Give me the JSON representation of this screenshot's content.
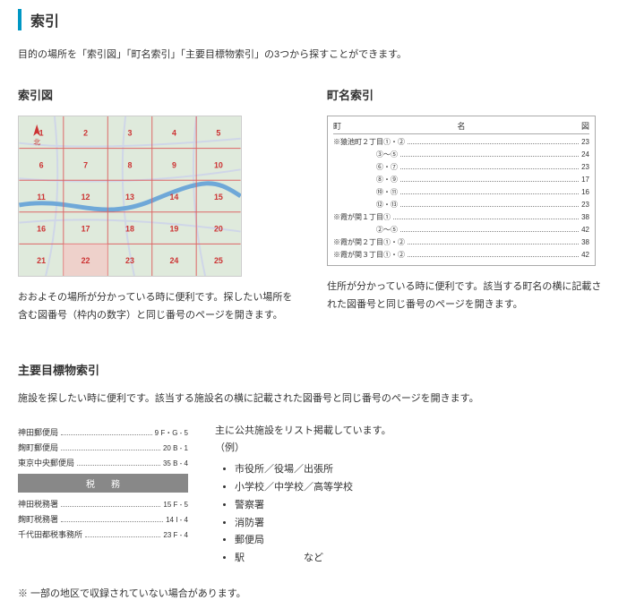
{
  "title": "索引",
  "intro": "目的の場所を「索引図」「町名索引」「主要目標物索引」の3つから探すことができます。",
  "section1": {
    "heading": "索引図",
    "caption": "おおよその場所が分かっている時に便利です。探したい場所を含む図番号（枠内の数字）と同じ番号のページを開きます。",
    "map": {
      "bg": "#dfeadc",
      "roads": "#cfd6e8",
      "highway": "#6fa8d8",
      "grid": "#d66",
      "nums_color": "#c33",
      "north": "北"
    }
  },
  "section2": {
    "heading": "町名索引",
    "header": {
      "left": "町",
      "mid": "名",
      "right": "図"
    },
    "rows": [
      {
        "l": "※猿池町２丁目①・②",
        "r": "23"
      },
      {
        "l": "　　　　　　③～⑤",
        "r": "24"
      },
      {
        "l": "　　　　　　⑥・⑦",
        "r": "23"
      },
      {
        "l": "　　　　　　⑧・⑨",
        "r": "17"
      },
      {
        "l": "　　　　　　⑩・⑪",
        "r": "16"
      },
      {
        "l": "　　　　　　⑫・⑬",
        "r": "23"
      },
      {
        "l": "※霞が関１丁目①",
        "r": "38"
      },
      {
        "l": "　　　　　　②～⑤",
        "r": "42"
      },
      {
        "l": "※霞が関２丁目①・②",
        "r": "38"
      },
      {
        "l": "※霞が関３丁目①・②",
        "r": "42"
      }
    ],
    "caption": "住所が分かっている時に便利です。該当する町名の横に記載された図番号と同じ番号のページを開きます。"
  },
  "section3": {
    "heading": "主要目標物索引",
    "desc": "施設を探したい時に便利です。該当する施設名の横に記載された図番号と同じ番号のページを開きます。",
    "left_rows_top": [
      {
        "l": "神田郵便局",
        "r": "9  F・G - 5"
      },
      {
        "l": "麹町郵便局",
        "r": "20  B - 1"
      },
      {
        "l": "東京中央郵便局",
        "r": "35  B - 4"
      }
    ],
    "sep": "税務",
    "left_rows_bottom": [
      {
        "l": "神田税務署",
        "r": "15  F - 5"
      },
      {
        "l": "麹町税務署",
        "r": "14  I - 4"
      },
      {
        "l": "千代田都税事務所",
        "r": "23  F - 4"
      }
    ],
    "right_intro1": "主に公共施設をリスト掲載しています。",
    "right_intro2": "（例）",
    "right_items": [
      "市役所／役場／出張所",
      "小学校／中学校／高等学校",
      "警察署",
      "消防署",
      "郵便局",
      "駅　　　　　　など"
    ]
  },
  "note": "※ 一部の地区で収録されていない場合があります。"
}
